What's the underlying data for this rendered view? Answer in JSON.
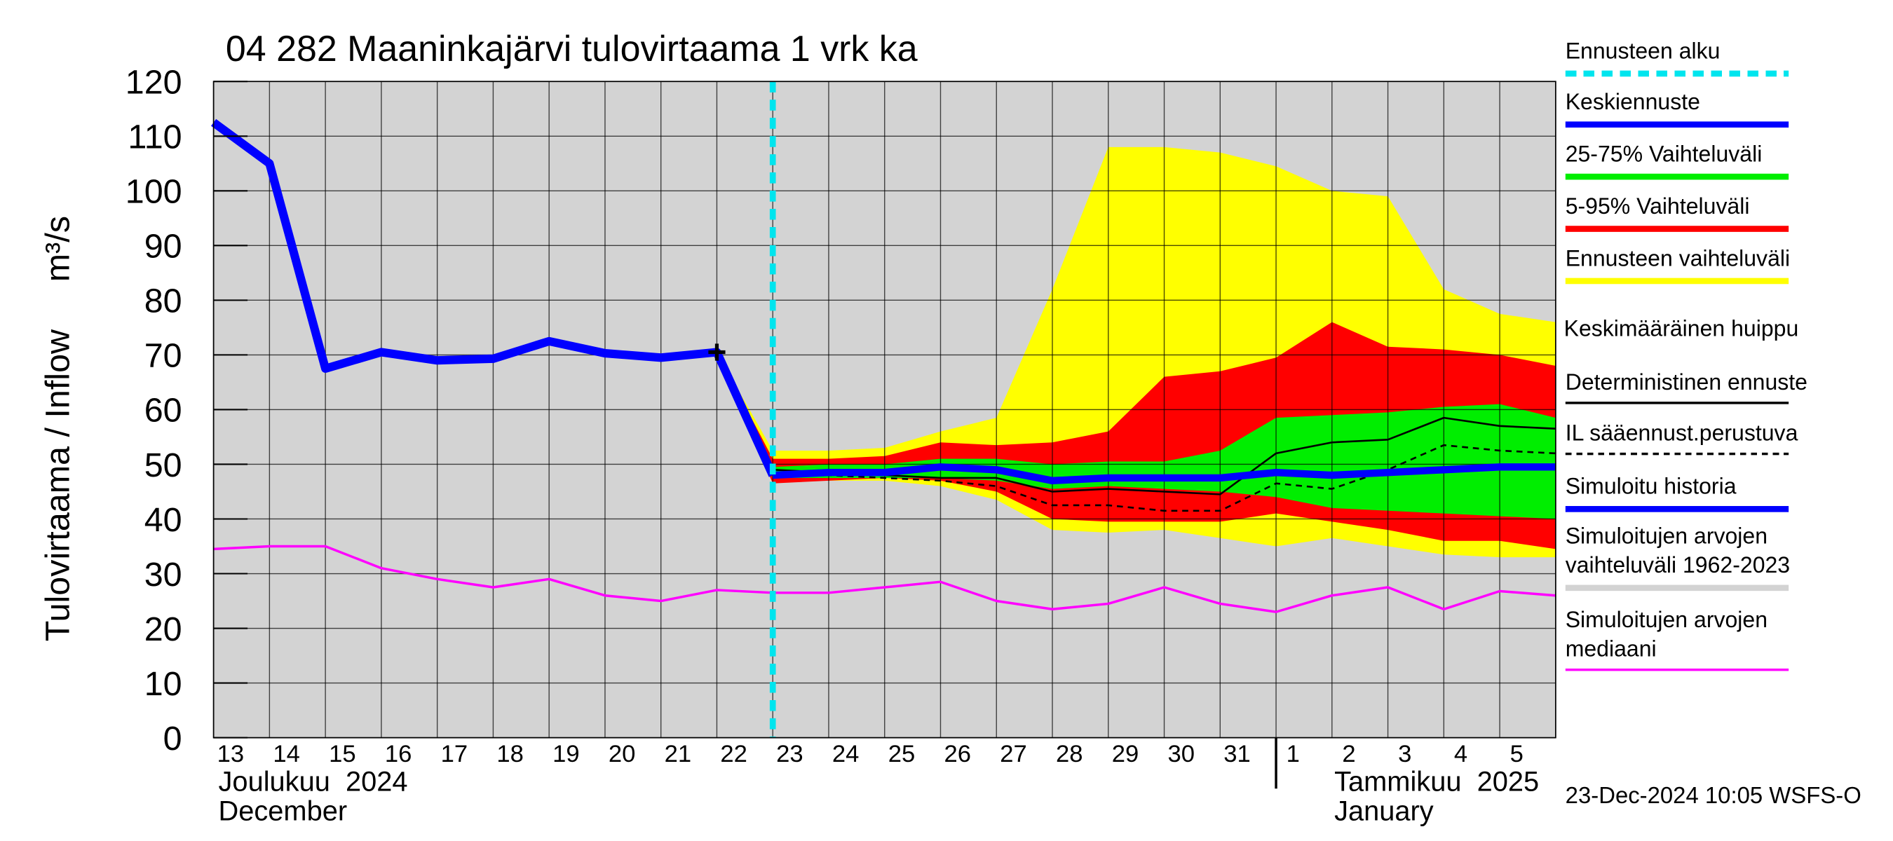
{
  "chart_data": {
    "type": "line",
    "title": "04 282 Maaninkajärvi tulovirtaama 1 vrk ka",
    "y_label": "Tulovirtaama / Inflow",
    "y_unit": "m³/s",
    "categories": [
      "13",
      "14",
      "15",
      "16",
      "17",
      "18",
      "19",
      "20",
      "21",
      "22",
      "23",
      "24",
      "25",
      "26",
      "27",
      "28",
      "29",
      "30",
      "31",
      "1",
      "2",
      "3",
      "4",
      "5",
      null
    ],
    "months": [
      {
        "label": "Joulukuu  2024",
        "label_en": "December",
        "x": "13"
      },
      {
        "label": "Tammikuu  2025",
        "label_en": "January",
        "x": "1"
      }
    ],
    "ylim": [
      0,
      120
    ],
    "yticks": [
      0,
      10,
      20,
      30,
      40,
      50,
      60,
      70,
      80,
      90,
      100,
      110,
      120
    ],
    "grid": true,
    "series": [
      {
        "name": "Ennusteen alku",
        "type": "vline",
        "x": "23",
        "color": "#00e5ee"
      },
      {
        "name": "Keskiennuste",
        "type": "line",
        "color": "#0000ff",
        "width": 6,
        "values": [
          null,
          null,
          null,
          null,
          null,
          null,
          null,
          null,
          null,
          null,
          48,
          48.5,
          48.5,
          49.5,
          49,
          47,
          47.5,
          47.5,
          47.5,
          48.5,
          48,
          48.5,
          49,
          49.5,
          49.5
        ]
      },
      {
        "name": "25-75% Vaihteluväli",
        "type": "band",
        "color": "#00ee00",
        "low": [
          null,
          null,
          null,
          null,
          null,
          null,
          null,
          null,
          null,
          70.5,
          47.5,
          47.5,
          47.5,
          47.5,
          47,
          45.5,
          46,
          45.5,
          45,
          44,
          42,
          41.5,
          41,
          40.5,
          40
        ],
        "high": [
          null,
          null,
          null,
          null,
          null,
          null,
          null,
          null,
          null,
          70.5,
          49.5,
          50,
          50,
          51,
          51,
          50,
          50.5,
          50.5,
          52.5,
          58.5,
          59,
          59.5,
          60.5,
          61,
          58.5
        ]
      },
      {
        "name": "5-95% Vaihteluväli",
        "type": "band",
        "color": "#ff0000",
        "low": [
          null,
          null,
          null,
          null,
          null,
          null,
          null,
          null,
          null,
          70.5,
          46.5,
          47,
          47.5,
          47,
          45,
          40,
          39.5,
          39.5,
          39.5,
          41,
          39.5,
          38,
          36,
          36,
          34.5
        ],
        "high": [
          null,
          null,
          null,
          null,
          null,
          null,
          null,
          null,
          null,
          70.5,
          51,
          51,
          51.5,
          54,
          53.5,
          54,
          56,
          66,
          67,
          69.5,
          76,
          71.5,
          71,
          70,
          68
        ]
      },
      {
        "name": "Ennusteen vaihteluväli",
        "type": "band",
        "color": "#ffff00",
        "low": [
          null,
          null,
          null,
          null,
          null,
          null,
          null,
          null,
          null,
          70.5,
          47,
          47,
          47,
          46,
          43.5,
          38,
          37.5,
          38,
          36.5,
          35,
          36.5,
          35,
          33.5,
          33,
          33
        ],
        "high": [
          null,
          null,
          null,
          null,
          null,
          null,
          null,
          null,
          null,
          70.5,
          52.5,
          52.5,
          53,
          56,
          58.5,
          82,
          108,
          108,
          107,
          104.5,
          100,
          99,
          82,
          77.5,
          76
        ]
      },
      {
        "name": "=Keskimääräinen huippu",
        "type": "marker",
        "x": "22",
        "value": 70.5,
        "color": "#000000"
      },
      {
        "name": "Deterministinen ennuste",
        "type": "line",
        "color": "#000000",
        "width": 1.5,
        "values": [
          null,
          null,
          null,
          null,
          null,
          null,
          null,
          null,
          null,
          70.5,
          49,
          48.5,
          48,
          47.5,
          47.5,
          45,
          45.5,
          45,
          44.5,
          52,
          54,
          54.5,
          58.5,
          57,
          56.5
        ]
      },
      {
        "name": "IL sääennust.perustuva",
        "type": "line",
        "color": "#000000",
        "width": 1.5,
        "dashed": true,
        "values": [
          null,
          null,
          null,
          null,
          null,
          null,
          null,
          null,
          null,
          70.5,
          48.5,
          48,
          47.5,
          47,
          46,
          42.5,
          42.5,
          41.5,
          41.5,
          46.5,
          45.5,
          49,
          53.5,
          52.5,
          52
        ]
      },
      {
        "name": "Simuloitu historia",
        "type": "line",
        "color": "#0000ff",
        "width": 7,
        "values": [
          112.5,
          105,
          67.5,
          70.5,
          69,
          69.3,
          72.5,
          70.3,
          69.5,
          70.5,
          48,
          null,
          null,
          null,
          null,
          null,
          null,
          null,
          null,
          null,
          null,
          null,
          null,
          null,
          null
        ]
      },
      {
        "name": "Simuloitujen arvojen vaihteluväli 1962-2023",
        "type": "background",
        "color": "#d3d3d3"
      },
      {
        "name": "Simuloitujen arvojen mediaani",
        "type": "line",
        "color": "#ff00ff",
        "width": 2,
        "values": [
          34.5,
          35,
          35,
          31,
          29,
          27.5,
          29,
          26,
          25,
          27,
          26.5,
          26.5,
          27.5,
          28.5,
          25,
          23.5,
          24.5,
          27.5,
          24.5,
          23,
          26,
          27.5,
          23.5,
          26.8,
          26
        ]
      }
    ],
    "footer": "23-Dec-2024 10:05 WSFS-O"
  }
}
